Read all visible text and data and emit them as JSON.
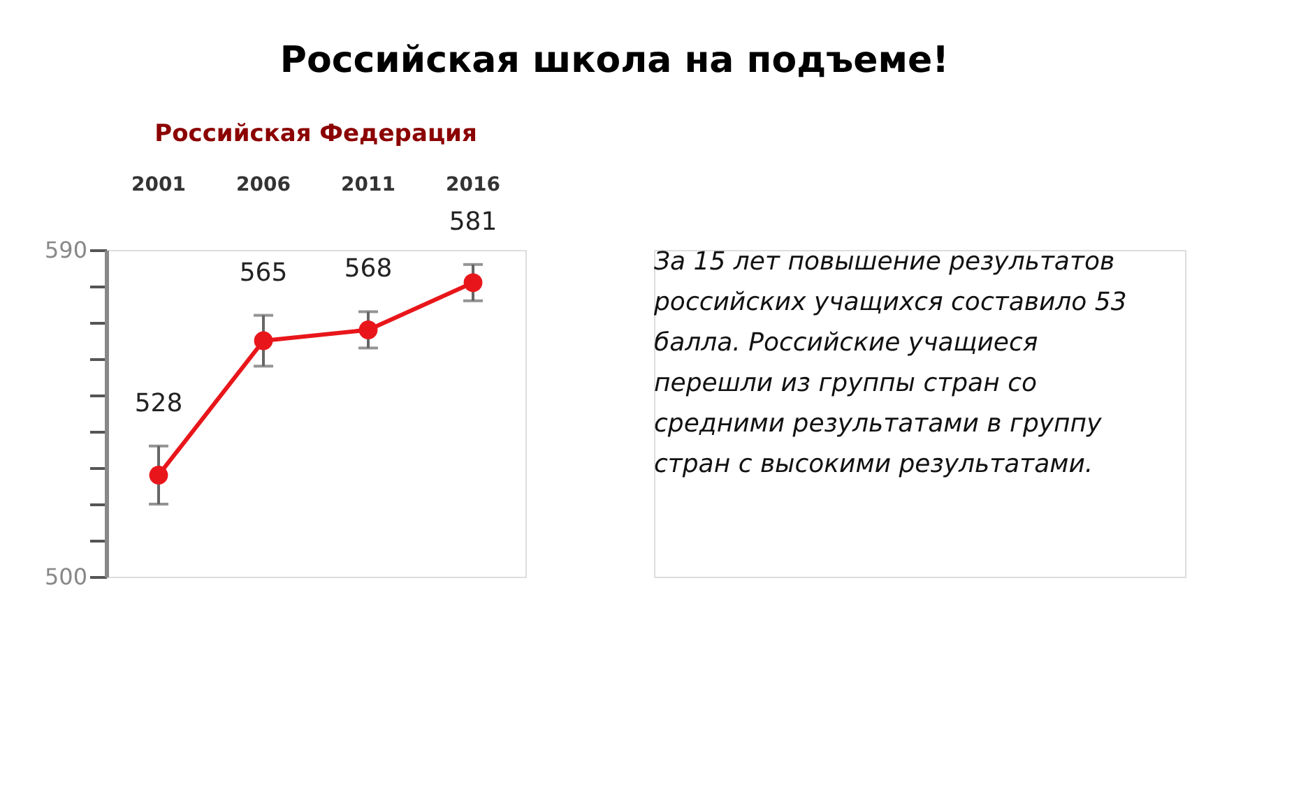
{
  "chart_data": {
    "type": "line",
    "title": "Российская школа на подъеме!",
    "subtitle": "Российская Федерация",
    "categories": [
      "2001",
      "2006",
      "2011",
      "2016"
    ],
    "series": [
      {
        "color": "#e8161b",
        "values": [
          528,
          565,
          568,
          581
        ],
        "errors": [
          8,
          7,
          5,
          5
        ]
      }
    ],
    "ylim": [
      500,
      590
    ],
    "yticks": [
      500,
      {
        "value": 510,
        "label": null
      },
      {
        "value": 520,
        "label": null
      },
      {
        "value": 530,
        "label": null
      },
      {
        "value": 540,
        "label": null
      },
      {
        "value": 550,
        "label": null
      },
      {
        "value": 560,
        "label": null
      },
      {
        "value": 570,
        "label": null
      },
      {
        "value": 580,
        "label": null
      },
      590
    ],
    "data_labels": true,
    "grid": false,
    "marker": "circle",
    "line_style": "solid",
    "annotations": [
      "За 15 лет повышение результатов российских учащихся составило 53 балла. Российские учащиеся перешли из группы стран со средними результатами в группу стран с высокими результатами."
    ]
  }
}
